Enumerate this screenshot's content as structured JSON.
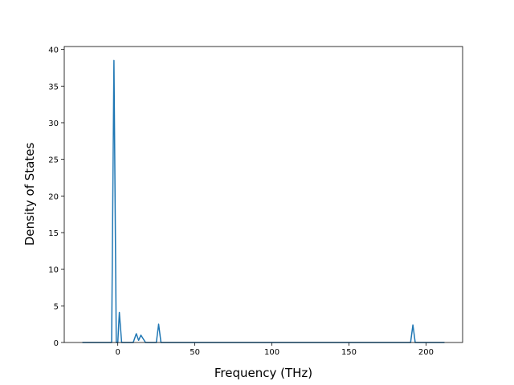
{
  "chart_data": {
    "type": "line",
    "x_label": "Frequency (THz)",
    "y_label": "Density of States",
    "x": [
      -23,
      -4,
      -2.5,
      -1,
      0,
      1,
      2.5,
      10,
      12,
      13.5,
      15,
      18,
      25,
      26.5,
      28,
      190,
      191.5,
      193,
      212
    ],
    "series": [
      {
        "color": "#1f77b4",
        "values": [
          0,
          0,
          38.5,
          0,
          0,
          4.1,
          0,
          0,
          1.2,
          0.3,
          1.0,
          0,
          0,
          2.5,
          0,
          0,
          2.4,
          0,
          0
        ]
      }
    ],
    "xlim": [
      -34.75,
      223.75
    ],
    "xticks": [
      0,
      50,
      100,
      150,
      200
    ],
    "ylim": [
      0,
      40.4
    ],
    "yticks": [
      0,
      5,
      10,
      15,
      20,
      25,
      30,
      35,
      40
    ]
  }
}
